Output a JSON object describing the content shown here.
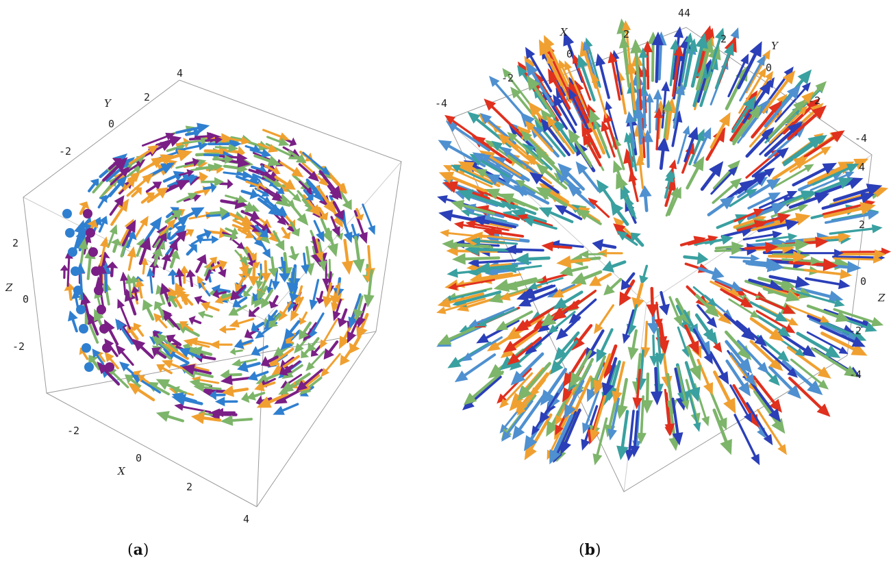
{
  "panel_a": {
    "caption_letter": "a",
    "x_axis": {
      "label": "X",
      "ticks": [
        "-2",
        "0",
        "2",
        "4"
      ]
    },
    "y_axis": {
      "label": "Y",
      "ticks": [
        "-2",
        "0",
        "2",
        "4"
      ]
    },
    "z_axis": {
      "label": "Z",
      "ticks": [
        "2",
        "0",
        "-2"
      ]
    },
    "field": "rotational",
    "colors": [
      "#2f7fd0",
      "#7a1f86",
      "#7db56a",
      "#f0a030",
      "#203880"
    ]
  },
  "panel_b": {
    "caption_letter": "b",
    "x_axis": {
      "label": "X",
      "ticks": [
        "-4",
        "-2",
        "0",
        "2",
        "4"
      ]
    },
    "y_axis": {
      "label": "Y",
      "ticks": [
        "4",
        "2",
        "0",
        "-2",
        "-4"
      ]
    },
    "z_axis": {
      "label": "Z",
      "ticks": [
        "4",
        "2",
        "0",
        "-2",
        "-4"
      ]
    },
    "field": "radial",
    "colors": [
      "#f0a030",
      "#7db56a",
      "#3aa0a0",
      "#2b3fb8",
      "#e0301e",
      "#4f90d0"
    ]
  }
}
